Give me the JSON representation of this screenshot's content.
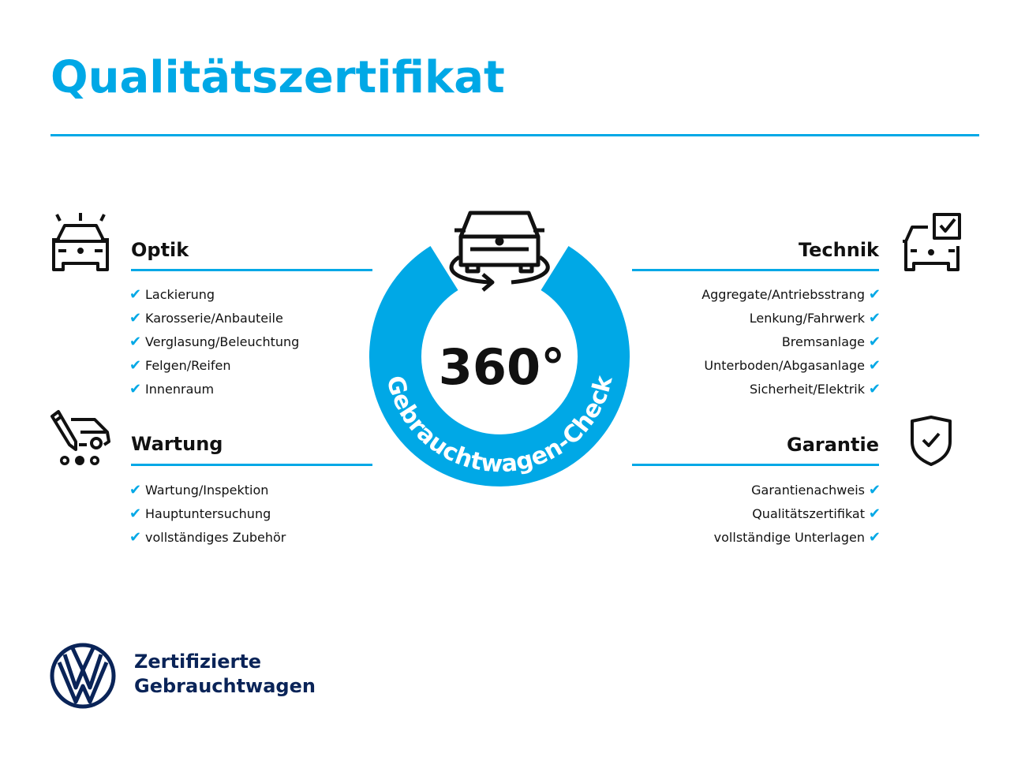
{
  "title": "Qualitätszertifikat",
  "center": {
    "value": "360°",
    "arc_text": "Gebrauchtwagen-Check"
  },
  "colors": {
    "accent": "#00a8e6",
    "brand_navy": "#0a2458"
  },
  "sections": {
    "optik": {
      "heading": "Optik",
      "icon": "car-shine-icon",
      "items": [
        "Lackierung",
        "Karosserie/Anbauteile",
        "Verglasung/Beleuchtung",
        "Felgen/Reifen",
        "Innenraum"
      ]
    },
    "wartung": {
      "heading": "Wartung",
      "icon": "service-van-icon",
      "items": [
        "Wartung/Inspektion",
        "Hauptuntersuchung",
        "vollständiges Zubehör"
      ]
    },
    "technik": {
      "heading": "Technik",
      "icon": "car-checkbox-icon",
      "items": [
        "Aggregate/Antriebsstrang",
        "Lenkung/Fahrwerk",
        "Bremsanlage",
        "Unterboden/Abgasanlage",
        "Sicherheit/Elektrik"
      ]
    },
    "garantie": {
      "heading": "Garantie",
      "icon": "shield-check-icon",
      "items": [
        "Garantienachweis",
        "Qualitätszertifikat",
        "vollständige Unterlagen"
      ]
    }
  },
  "check_glyph": "✔",
  "brand": {
    "line1": "Zertifizierte",
    "line2": "Gebrauchtwagen",
    "logo": "vw-logo-icon"
  }
}
